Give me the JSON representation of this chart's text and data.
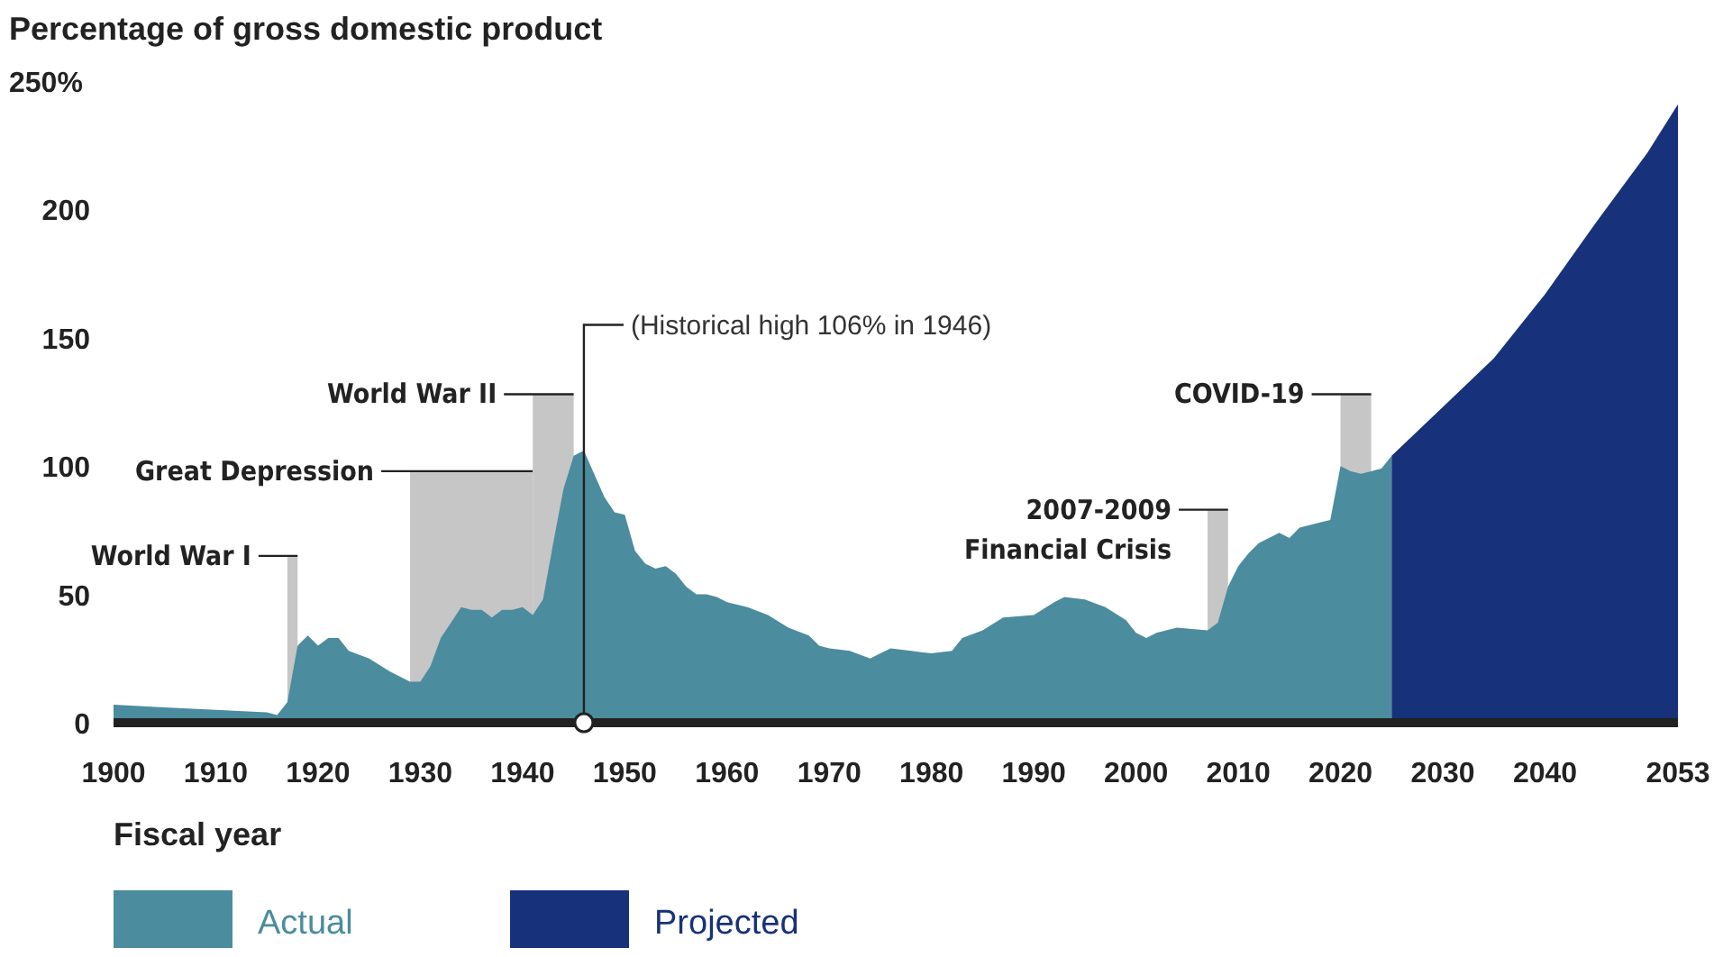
{
  "chart_data": {
    "type": "area",
    "title": "Percentage of gross domestic product",
    "xlabel": "Fiscal year",
    "xlim": [
      1900,
      2053
    ],
    "ylim": [
      0,
      250
    ],
    "xticks": [
      1900,
      1910,
      1920,
      1930,
      1940,
      1950,
      1960,
      1970,
      1980,
      1990,
      2000,
      2010,
      2020,
      2030,
      2040,
      2053
    ],
    "yticks": [
      0,
      50,
      100,
      150,
      200,
      {
        "value": 250,
        "label": "250%"
      }
    ],
    "grid": false,
    "legend": "bottom",
    "series": [
      {
        "name": "Actual",
        "color": "#4b8c9e",
        "x": [
          1900,
          1905,
          1910,
          1915,
          1916,
          1917,
          1918,
          1919,
          1920,
          1921,
          1922,
          1923,
          1925,
          1927,
          1929,
          1930,
          1931,
          1932,
          1933,
          1934,
          1935,
          1936,
          1937,
          1938,
          1939,
          1940,
          1941,
          1942,
          1943,
          1944,
          1945,
          1946,
          1947,
          1948,
          1949,
          1950,
          1951,
          1952,
          1953,
          1954,
          1955,
          1956,
          1957,
          1958,
          1959,
          1960,
          1962,
          1964,
          1966,
          1968,
          1969,
          1970,
          1972,
          1974,
          1975,
          1976,
          1978,
          1980,
          1982,
          1983,
          1985,
          1987,
          1990,
          1992,
          1993,
          1995,
          1997,
          1999,
          2000,
          2001,
          2002,
          2004,
          2007,
          2008,
          2009,
          2010,
          2011,
          2012,
          2014,
          2015,
          2016,
          2018,
          2019,
          2020,
          2021,
          2022,
          2023,
          2024,
          2025
        ],
        "values": [
          7,
          6,
          5,
          4,
          3,
          8,
          30,
          34,
          30,
          33,
          33,
          28,
          25,
          20,
          16,
          16,
          22,
          33,
          39,
          45,
          44,
          44,
          41,
          44,
          44,
          45,
          42,
          48,
          70,
          91,
          104,
          106,
          97,
          88,
          82,
          81,
          67,
          62,
          60,
          61,
          58,
          53,
          50,
          50,
          49,
          47,
          45,
          42,
          37,
          34,
          30,
          29,
          28,
          25,
          27,
          29,
          28,
          27,
          28,
          33,
          36,
          41,
          42,
          47,
          49,
          48,
          45,
          40,
          35,
          33,
          35,
          37,
          36,
          39,
          53,
          61,
          66,
          70,
          74,
          72,
          76,
          78,
          79,
          100,
          98,
          97,
          98,
          99,
          104
        ]
      },
      {
        "name": "Projected",
        "color": "#17327a",
        "x": [
          2025,
          2030,
          2035,
          2040,
          2045,
          2050,
          2053
        ],
        "values": [
          104,
          123,
          142,
          167,
          195,
          222,
          241
        ]
      }
    ],
    "bands": [
      {
        "axis": "x",
        "from": 1917,
        "to": 1918,
        "label": "World War I",
        "color": "#c6c6c6"
      },
      {
        "axis": "x",
        "from": 1929,
        "to": 1941,
        "label": "Great Depression",
        "color": "#c6c6c6"
      },
      {
        "axis": "x",
        "from": 1941,
        "to": 1945,
        "label": "World War II",
        "color": "#c6c6c6"
      },
      {
        "axis": "x",
        "from": 2007,
        "to": 2009,
        "label": "2007-2009\nFinancial Crisis",
        "color": "#c6c6c6"
      },
      {
        "axis": "x",
        "from": 2020,
        "to": 2023,
        "label": "COVID-19",
        "color": "#c6c6c6"
      }
    ],
    "annotations": [
      {
        "text": "(Historical high 106% in 1946)",
        "x": 1946,
        "y": 106
      }
    ]
  }
}
